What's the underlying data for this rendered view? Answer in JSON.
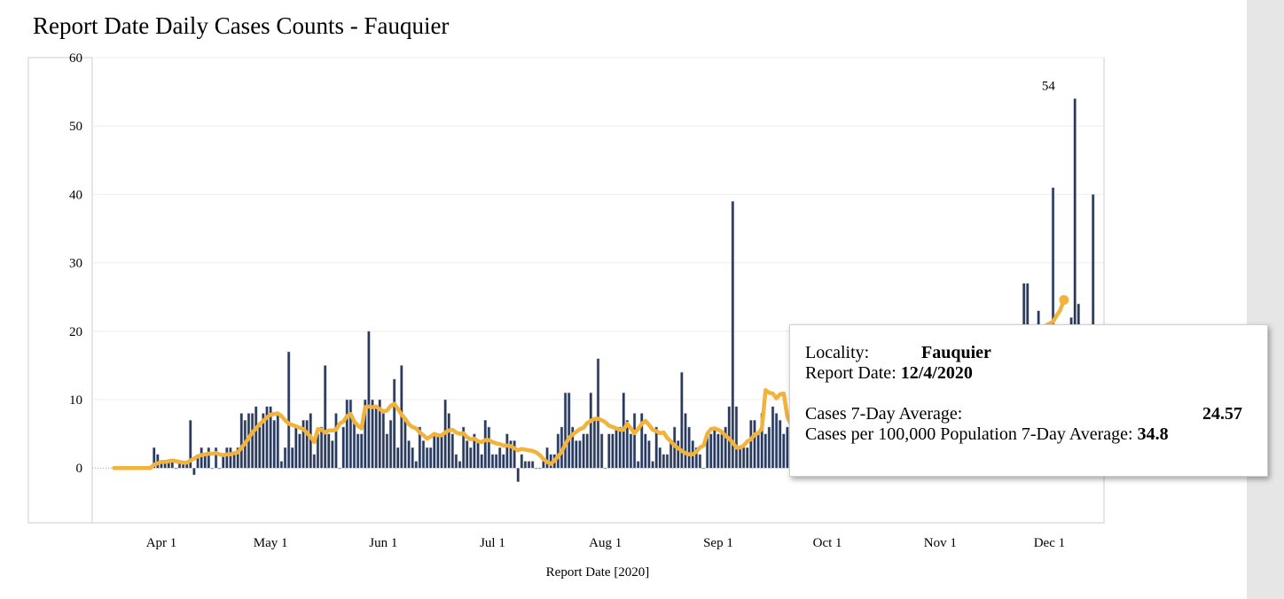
{
  "title": "Report Date Daily Cases Counts - Fauquier",
  "colors": {
    "bar_fill": "#2a3a5c",
    "bar_stroke": "#b8c0d0",
    "line": "#f2b33d",
    "gridline": "#eeeeee",
    "zero_line": "#999999",
    "frame": "#cccccc",
    "scrollbar": "#e6e6e6"
  },
  "tooltip": {
    "locality_label": "Locality:",
    "locality_value": "Fauquier",
    "date_label": "Report Date:",
    "date_value": "12/4/2020",
    "avg_label": "Cases 7-Day Average:",
    "avg_value": "24.57",
    "per100k_label": "Cases per 100,000 Population 7-Day Average:",
    "per100k_value": "34.8"
  },
  "chart_data": {
    "type": "bar",
    "title": "Report Date Daily Cases Counts - Fauquier",
    "xlabel": "Report Date [2020]",
    "ylabel": "",
    "ylim": [
      -8,
      60
    ],
    "yticks": [
      0,
      10,
      20,
      30,
      40,
      50,
      60
    ],
    "x_tick_labels": [
      {
        "date": "2020-04-01",
        "label": "Apr 1"
      },
      {
        "date": "2020-05-01",
        "label": "May 1"
      },
      {
        "date": "2020-06-01",
        "label": "Jun 1"
      },
      {
        "date": "2020-07-01",
        "label": "Jul 1"
      },
      {
        "date": "2020-08-01",
        "label": "Aug 1"
      },
      {
        "date": "2020-09-01",
        "label": "Sep 1"
      },
      {
        "date": "2020-10-01",
        "label": "Oct 1"
      },
      {
        "date": "2020-11-01",
        "label": "Nov 1"
      },
      {
        "date": "2020-12-01",
        "label": "Dec 1"
      }
    ],
    "xlim": [
      "2020-03-13",
      "2020-12-16"
    ],
    "start_date": "2020-03-19",
    "end_date": "2020-12-04",
    "series": [
      {
        "kind": "bar",
        "values": [
          0,
          0,
          0,
          0,
          0,
          0,
          0,
          0,
          0,
          0,
          0,
          3,
          2,
          1,
          1,
          1,
          1,
          0,
          1,
          1,
          1,
          7,
          -1,
          2,
          3,
          2,
          3,
          0,
          3,
          0,
          2,
          3,
          3,
          2,
          3,
          8,
          7,
          8,
          8,
          9,
          6,
          8,
          9,
          9,
          7,
          8,
          1,
          3,
          17,
          3,
          6,
          5,
          7,
          7,
          8,
          2,
          5,
          6,
          15,
          5,
          4,
          8,
          0,
          6,
          10,
          10,
          7,
          5,
          5,
          10,
          20,
          10,
          9,
          10,
          8,
          5,
          7,
          13,
          3,
          15,
          7,
          4,
          3,
          1,
          6,
          4,
          3,
          3,
          5,
          5,
          5,
          10,
          8,
          5,
          2,
          1,
          6,
          4,
          3,
          5,
          4,
          2,
          7,
          6,
          2,
          2,
          3,
          2,
          5,
          4,
          4,
          -2,
          2,
          1,
          1,
          1,
          0,
          0,
          1,
          3,
          2,
          2,
          5,
          6,
          11,
          11,
          6,
          4,
          4,
          5,
          5,
          11,
          7,
          16,
          5,
          0,
          5,
          5,
          6,
          6,
          11,
          7,
          5,
          8,
          1,
          8,
          5,
          4,
          1,
          6,
          3,
          2,
          2,
          4,
          6,
          4,
          14,
          8,
          6,
          4,
          3,
          2,
          0,
          5,
          5,
          6,
          5,
          5,
          6,
          9,
          39,
          9,
          3,
          3,
          3,
          7,
          7,
          5,
          8,
          5,
          6,
          9,
          8,
          7,
          5,
          6,
          6,
          8,
          6,
          13,
          5,
          7,
          16,
          8,
          3,
          2,
          11,
          7,
          12,
          9,
          8,
          9,
          8,
          9,
          10,
          8,
          7,
          9,
          11,
          10,
          10,
          9,
          10,
          10,
          8,
          9,
          9,
          13,
          11,
          10,
          9,
          12,
          11,
          10,
          12,
          10,
          11,
          12,
          10,
          13,
          9,
          12,
          11,
          14,
          10,
          11,
          15,
          12,
          14,
          10,
          13,
          14,
          16,
          13,
          12,
          17,
          15,
          14,
          15,
          18,
          27,
          27,
          15,
          18,
          23,
          15,
          17,
          15,
          41,
          20,
          18,
          19,
          21,
          22,
          54,
          24,
          20,
          18,
          21,
          40
        ]
      },
      {
        "kind": "line",
        "name": "Cases 7-Day Average",
        "values": [
          0,
          0,
          0,
          0,
          0,
          0,
          0,
          0,
          0,
          0,
          0,
          0.5,
          0.7,
          0.9,
          0.9,
          1,
          1.1,
          1,
          0.9,
          0.8,
          0.8,
          1.1,
          1.4,
          1.7,
          1.9,
          2,
          2.1,
          2.1,
          2.2,
          2,
          1.9,
          2,
          2,
          2.2,
          2.3,
          3,
          3.6,
          4.4,
          5.2,
          5.8,
          6.4,
          6.9,
          7.4,
          7.8,
          7.9,
          8,
          7.6,
          7,
          6.5,
          6.3,
          6.1,
          5.9,
          5.7,
          5.1,
          4.6,
          3.8,
          5.7,
          5.6,
          5.2,
          5.5,
          5.5,
          5.6,
          6.5,
          6.8,
          7.6,
          7.9,
          6.8,
          6.2,
          5.8,
          8.9,
          9,
          8.9,
          9,
          8.6,
          8.3,
          8.4,
          9.1,
          9.4,
          8.6,
          7.8,
          7.2,
          6.4,
          6,
          5.8,
          5.2,
          4.8,
          4.3,
          4.6,
          5,
          4.8,
          4.8,
          5.2,
          5.5,
          5.6,
          5.2,
          5,
          5.1,
          4.5,
          4.2,
          4.3,
          3.9,
          3.8,
          4.1,
          4.1,
          3.8,
          3.6,
          3.5,
          3.3,
          3.3,
          3.2,
          2.9,
          2.6,
          2.8,
          2.7,
          2.6,
          2.5,
          2.3,
          1.9,
          1.3,
          0.9,
          0.6,
          1.1,
          1.7,
          2.4,
          3.5,
          4.4,
          4.9,
          5.3,
          5.7,
          5.9,
          6.6,
          6.9,
          7.2,
          7.2,
          7,
          6.7,
          6.2,
          6,
          5.8,
          5.6,
          5.6,
          6.5,
          5.8,
          5.1,
          5.7,
          6.5,
          6.9,
          6.3,
          5.6,
          5.4,
          5.1,
          5.2,
          4.4,
          3.9,
          3.3,
          2.9,
          2.5,
          2.2,
          2,
          2,
          2.4,
          3,
          3.3,
          5,
          5.7,
          5.8,
          5.6,
          5.3,
          4.7,
          4.3,
          3.7,
          3,
          3,
          3.3,
          3.9,
          4.2,
          4.9,
          5.1,
          5.8,
          11.4,
          11,
          10.9,
          10.2,
          10.8,
          10.9,
          7.5,
          6.4,
          7,
          7,
          7.6,
          8.1,
          7.4,
          7,
          6.8,
          6.9,
          6.6,
          6.8,
          6.5,
          7.3,
          6.8,
          6.9,
          8.6,
          8.3,
          7.9,
          7.6,
          8.1,
          8,
          7.5,
          7.5,
          8.7,
          9.1,
          8.8,
          9.2,
          9.2,
          9.5,
          9.6,
          9.5,
          9.7,
          9.5,
          9.8,
          10.1,
          10,
          9.8,
          10.2,
          10.3,
          10.5,
          10.4,
          10.6,
          10.9,
          10.8,
          11.2,
          11.5,
          11.4,
          11.9,
          12.2,
          12.3,
          12.6,
          12.8,
          13.1,
          13.4,
          13.5,
          13.9,
          14.2,
          14.4,
          14.7,
          15.1,
          16,
          16.8,
          17.2,
          17.9,
          18.5,
          18.9,
          19.6,
          20.2,
          20.4,
          20.6,
          20.8,
          21.1,
          21.4,
          22.3,
          23.1,
          24.57
        ]
      }
    ],
    "annotations": [
      {
        "date": "2020-12-01",
        "value": 54,
        "text": "54"
      }
    ],
    "grid": true
  }
}
